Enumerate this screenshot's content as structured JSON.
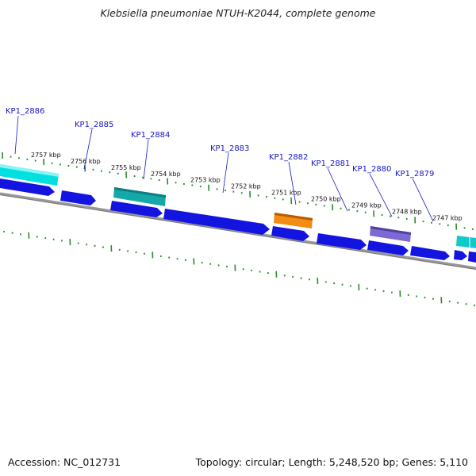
{
  "title": "Klebsiella pneumoniae NTUH-K2044, complete genome",
  "footer": {
    "accession": "Accession: NC_012731",
    "summary": "Topology: circular; Length: 5,248,520 bp; Genes: 5,110"
  },
  "colors": {
    "backbone": "#8a8a8a",
    "forward_gene": "#1a1ae6",
    "gene_cyan": "#00dede",
    "gene_teal": "#11aaaa",
    "gene_orange": "#f08a10",
    "gene_purple": "#7a66d0",
    "tick": "#2a8a2a",
    "label_blue": "#1515c8"
  },
  "kbp_scale": [
    {
      "kbp": 2757,
      "label": "2757 kbp"
    },
    {
      "kbp": 2756,
      "label": "2756 kbp"
    },
    {
      "kbp": 2755,
      "label": "2755 kbp"
    },
    {
      "kbp": 2754,
      "label": "2754 kbp"
    },
    {
      "kbp": 2753,
      "label": "2753 kbp"
    },
    {
      "kbp": 2752,
      "label": "2752 kbp"
    },
    {
      "kbp": 2751,
      "label": "2751 kbp"
    },
    {
      "kbp": 2750,
      "label": "2750 kbp"
    },
    {
      "kbp": 2749,
      "label": "2749 kbp"
    },
    {
      "kbp": 2748,
      "label": "2748 kbp"
    },
    {
      "kbp": 2747,
      "label": "2747 kbp"
    }
  ],
  "gene_labels": [
    "KP1_2886",
    "KP1_2885",
    "KP1_2884",
    "KP1_2883",
    "KP1_2882",
    "KP1_2881",
    "KP1_2880",
    "KP1_2879"
  ]
}
